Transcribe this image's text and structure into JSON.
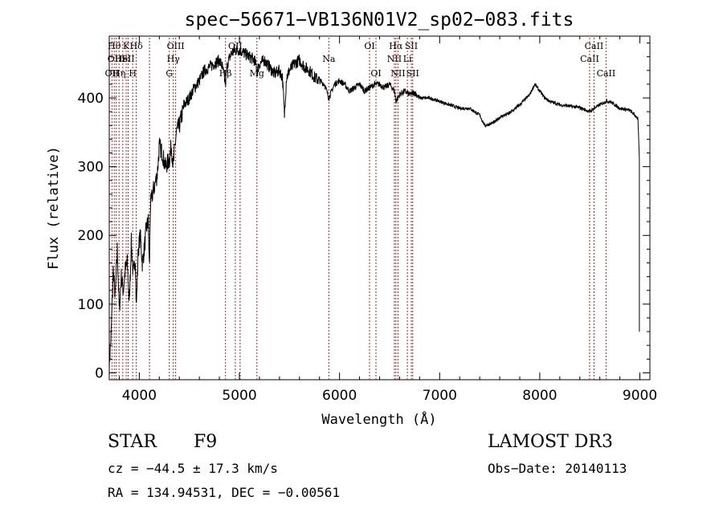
{
  "info": {
    "object_class": "STAR",
    "subclass": "F9",
    "survey": "LAMOST DR3",
    "redshift": "cz = −44.5 ± 17.3 km/s",
    "obs_date": "Obs−Date: 20140113",
    "coordinates": "RA = 134.94531, DEC =  −0.00561"
  },
  "chart_data": {
    "type": "line",
    "title": "spec−56671−VB136N01V2_sp02−083.fits",
    "xlabel": "Wavelength (Å)",
    "ylabel": "Flux (relative)",
    "xlim": [
      3700,
      9100
    ],
    "ylim": [
      -10,
      490
    ],
    "x_ticks": [
      4000,
      5000,
      6000,
      7000,
      8000,
      9000
    ],
    "y_ticks": [
      0,
      100,
      200,
      300,
      400
    ],
    "line_color": "#000000",
    "marker_color": "#b22222",
    "spectrum_anchors": {
      "x": [
        3700,
        3720,
        3740,
        3760,
        3780,
        3800,
        3820,
        3840,
        3860,
        3880,
        3900,
        3920,
        3940,
        3960,
        3970,
        3990,
        4010,
        4030,
        4050,
        4070,
        4090,
        4101,
        4110,
        4130,
        4150,
        4180,
        4200,
        4230,
        4260,
        4280,
        4300,
        4320,
        4340,
        4350,
        4370,
        4400,
        4450,
        4500,
        4550,
        4600,
        4650,
        4700,
        4750,
        4800,
        4830,
        4861,
        4880,
        4920,
        4960,
        5000,
        5050,
        5100,
        5150,
        5180,
        5200,
        5250,
        5300,
        5350,
        5400,
        5430,
        5450,
        5470,
        5500,
        5550,
        5600,
        5650,
        5700,
        5750,
        5800,
        5850,
        5893,
        5950,
        6000,
        6050,
        6100,
        6150,
        6200,
        6250,
        6300,
        6350,
        6400,
        6450,
        6500,
        6550,
        6563,
        6600,
        6650,
        6700,
        6750,
        6800,
        6900,
        7000,
        7100,
        7200,
        7300,
        7400,
        7450,
        7500,
        7550,
        7600,
        7700,
        7800,
        7900,
        7950,
        8000,
        8050,
        8100,
        8200,
        8300,
        8400,
        8498,
        8542,
        8600,
        8662,
        8700,
        8800,
        8900,
        8950,
        8980,
        8995
      ],
      "y": [
        10,
        60,
        150,
        110,
        180,
        90,
        140,
        120,
        150,
        160,
        100,
        190,
        140,
        170,
        95,
        180,
        200,
        160,
        180,
        210,
        220,
        150,
        240,
        260,
        270,
        290,
        330,
        320,
        300,
        305,
        310,
        330,
        300,
        320,
        350,
        360,
        390,
        400,
        415,
        425,
        440,
        445,
        450,
        455,
        445,
        420,
        450,
        465,
        470,
        470,
        465,
        460,
        455,
        440,
        450,
        455,
        445,
        435,
        440,
        430,
        375,
        430,
        440,
        450,
        455,
        445,
        440,
        430,
        425,
        420,
        400,
        420,
        425,
        420,
        410,
        415,
        420,
        410,
        415,
        420,
        420,
        415,
        420,
        410,
        395,
        405,
        410,
        405,
        408,
        400,
        400,
        395,
        390,
        385,
        385,
        375,
        360,
        362,
        365,
        372,
        378,
        390,
        405,
        420,
        410,
        400,
        395,
        390,
        388,
        386,
        380,
        385,
        390,
        395,
        395,
        385,
        382,
        375,
        370,
        310
      ]
    },
    "line_markers": [
      {
        "x": 3727,
        "labels": [
          "OII"
        ],
        "row": 2
      },
      {
        "x": 3750,
        "labels": [
          "Hθ"
        ],
        "row": 0
      },
      {
        "x": 3770,
        "labels": [
          "OIII"
        ],
        "row": 1
      },
      {
        "x": 3798,
        "labels": [
          "Hη"
        ],
        "row": 2
      },
      {
        "x": 3835,
        "labels": [
          "Hel"
        ],
        "row": 1
      },
      {
        "x": 3869,
        "labels": [
          "K"
        ],
        "row": 0
      },
      {
        "x": 3889,
        "labels": [
          "SII"
        ],
        "row": 1
      },
      {
        "x": 3934,
        "labels": [
          "H"
        ],
        "row": 2
      },
      {
        "x": 3970,
        "labels": [
          "Hδ"
        ],
        "row": 0
      },
      {
        "x": 4102,
        "labels": [],
        "row": 0
      },
      {
        "x": 4300,
        "labels": [
          "G"
        ],
        "row": 2
      },
      {
        "x": 4340,
        "labels": [
          "Hγ"
        ],
        "row": 1
      },
      {
        "x": 4363,
        "labels": [
          "OIII"
        ],
        "row": 0
      },
      {
        "x": 4861,
        "labels": [
          "Hβ"
        ],
        "row": 2
      },
      {
        "x": 4959,
        "labels": [
          "OII"
        ],
        "row": 0
      },
      {
        "x": 5007,
        "labels": [],
        "row": 0
      },
      {
        "x": 5175,
        "labels": [
          "Mg"
        ],
        "row": 2
      },
      {
        "x": 5893,
        "labels": [
          "Na"
        ],
        "row": 1
      },
      {
        "x": 6300,
        "labels": [
          "OI"
        ],
        "row": 0
      },
      {
        "x": 6364,
        "labels": [
          "OI"
        ],
        "row": 2
      },
      {
        "x": 6548,
        "labels": [
          "NII"
        ],
        "row": 1
      },
      {
        "x": 6563,
        "labels": [
          "Hα"
        ],
        "row": 0
      },
      {
        "x": 6584,
        "labels": [
          "NII"
        ],
        "row": 2
      },
      {
        "x": 6678,
        "labels": [
          "Li"
        ],
        "row": 1
      },
      {
        "x": 6717,
        "labels": [
          "SII"
        ],
        "row": 0
      },
      {
        "x": 6731,
        "labels": [
          "SII"
        ],
        "row": 2
      },
      {
        "x": 8498,
        "labels": [
          "CaII"
        ],
        "row": 1
      },
      {
        "x": 8542,
        "labels": [
          "CaII"
        ],
        "row": 0
      },
      {
        "x": 8662,
        "labels": [
          "CaII"
        ],
        "row": 2
      }
    ],
    "grid": false,
    "legend": "none"
  }
}
